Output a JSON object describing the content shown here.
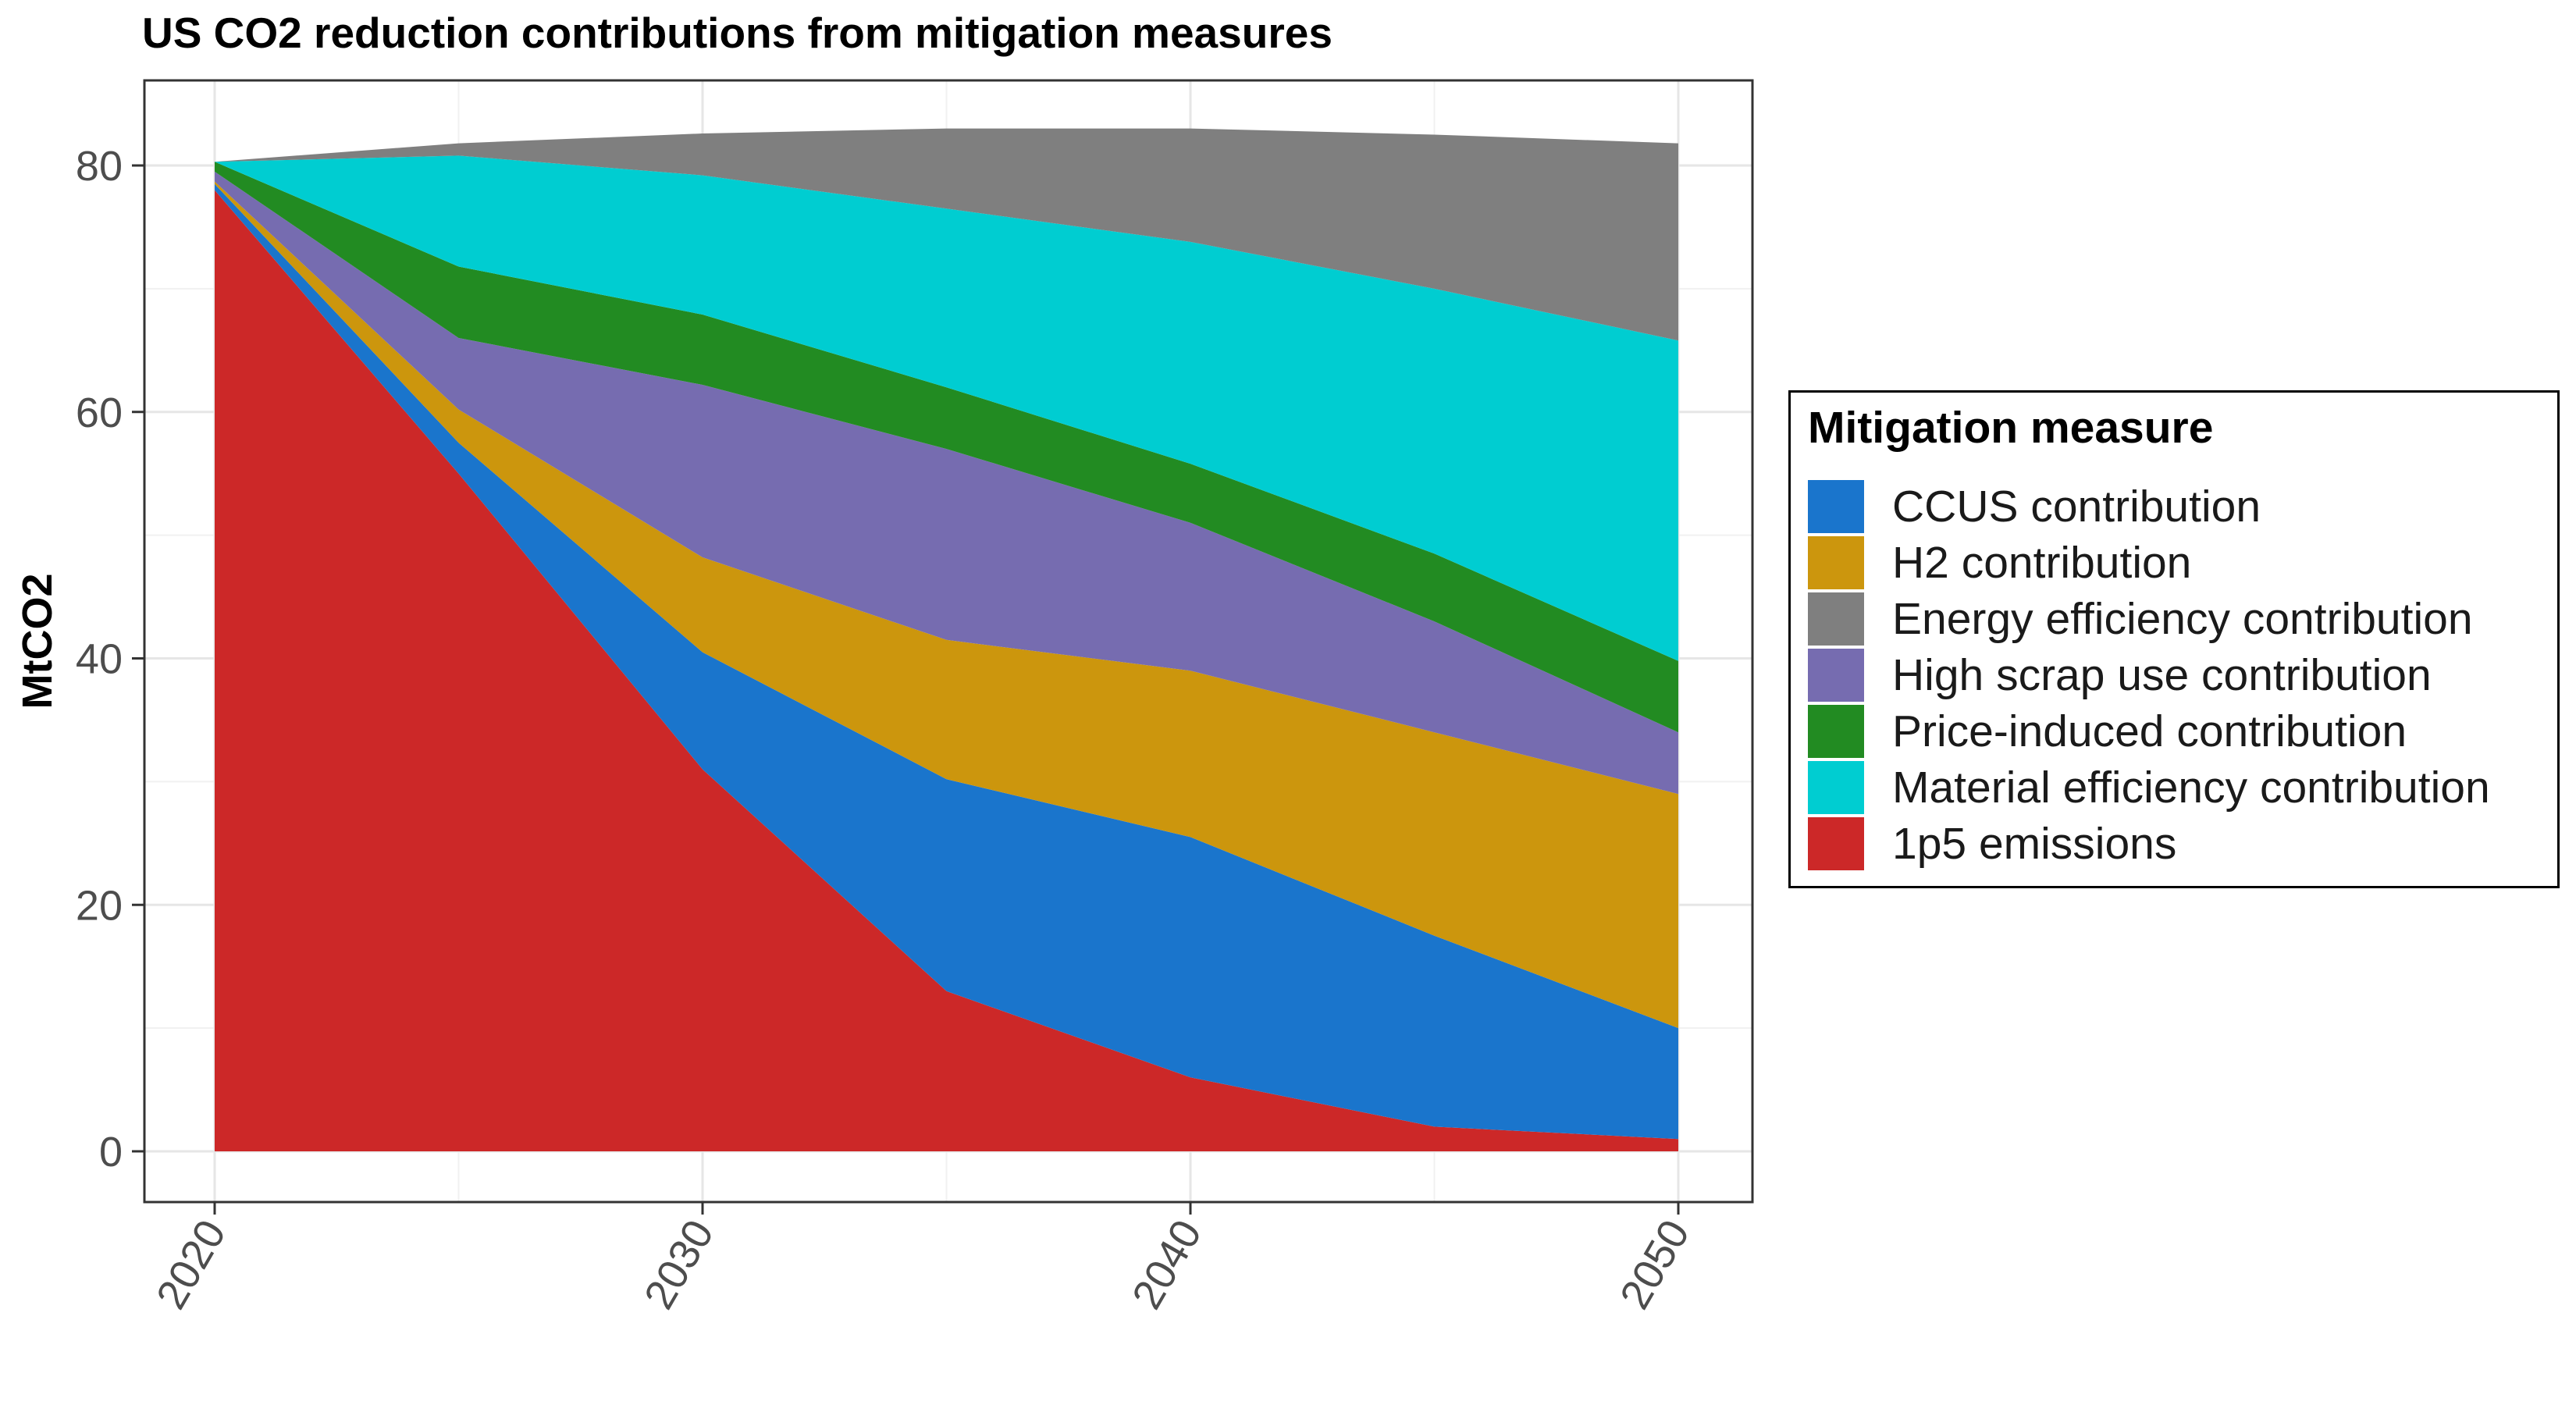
{
  "chart_data": {
    "type": "area",
    "title": "US CO2 reduction contributions from mitigation measures",
    "xlabel": "",
    "ylabel": "MtCO2",
    "x": [
      2020,
      2025,
      2030,
      2035,
      2040,
      2045,
      2050
    ],
    "xticks": [
      "2020",
      "2030",
      "2040",
      "2050"
    ],
    "yticks": [
      "0",
      "20",
      "40",
      "60",
      "80"
    ],
    "xlim": [
      2020,
      2050
    ],
    "ylim": [
      0,
      80
    ],
    "grid": true,
    "stacked": true,
    "legend_title": "Mitigation measure",
    "legend_position": "right",
    "series": [
      {
        "name": "1p5 emissions",
        "color": "#CC2828",
        "values": [
          78.0,
          55.0,
          31.0,
          13.0,
          6.0,
          2.0,
          1.0
        ]
      },
      {
        "name": "CCUS contribution",
        "color": "#1A75CC",
        "values": [
          0.5,
          2.5,
          9.5,
          17.2,
          19.5,
          15.5,
          9.0
        ]
      },
      {
        "name": "H2 contribution",
        "color": "#CC960D",
        "values": [
          0.2,
          2.7,
          7.7,
          11.3,
          13.5,
          16.5,
          19.0
        ]
      },
      {
        "name": "High scrap use contribution",
        "color": "#766CB0",
        "values": [
          0.8,
          5.8,
          14.0,
          15.5,
          12.0,
          9.0,
          5.0
        ]
      },
      {
        "name": "Price-induced contribution",
        "color": "#228B22",
        "values": [
          0.8,
          5.8,
          5.7,
          5.0,
          4.8,
          5.5,
          5.8
        ]
      },
      {
        "name": "Material efficiency contribution",
        "color": "#00CDD1",
        "values": [
          0.0,
          9.0,
          11.3,
          14.5,
          18.0,
          21.5,
          26.0
        ]
      },
      {
        "name": "Energy efficiency contribution",
        "color": "#7F7F7F",
        "values": [
          0.0,
          1.0,
          3.4,
          6.5,
          9.2,
          12.5,
          16.0
        ]
      }
    ],
    "legend_order": [
      "CCUS contribution",
      "H2 contribution",
      "Energy efficiency contribution",
      "High scrap use contribution",
      "Price-induced contribution",
      "Material efficiency contribution",
      "1p5 emissions"
    ]
  }
}
